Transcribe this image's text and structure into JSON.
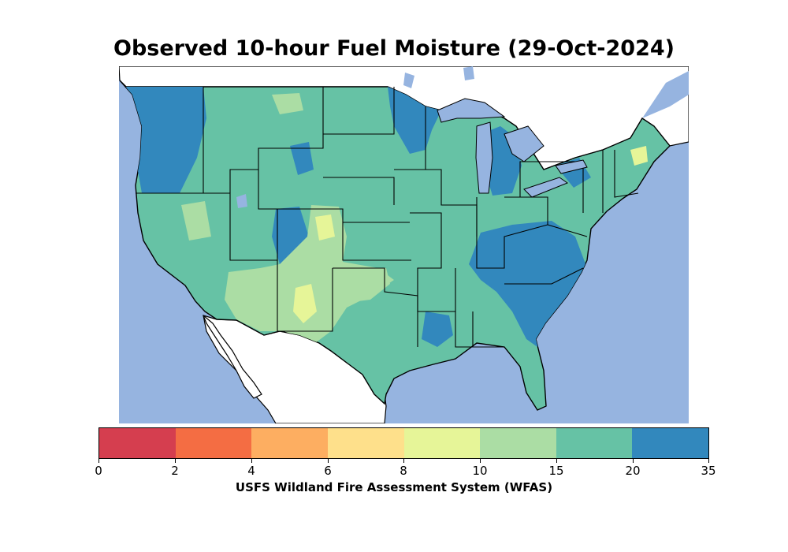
{
  "title": "Observed 10-hour Fuel Moisture (29-Oct-2024)",
  "colors": {
    "ocean": "#96b4e0",
    "lakes": "#96b4e0",
    "land_outside": "#ffffff",
    "borders": "#000000"
  },
  "colorbar": {
    "label": "USFS Wildland Fire Assessment System (WFAS)",
    "ticks": [
      "0",
      "2",
      "4",
      "6",
      "8",
      "10",
      "15",
      "20",
      "35"
    ],
    "bins": [
      {
        "range": "0-2",
        "color": "#d53e4f"
      },
      {
        "range": "2-4",
        "color": "#f46d43"
      },
      {
        "range": "4-6",
        "color": "#fdae61"
      },
      {
        "range": "6-8",
        "color": "#fee08b"
      },
      {
        "range": "8-10",
        "color": "#e6f598"
      },
      {
        "range": "10-15",
        "color": "#abdda4"
      },
      {
        "range": "15-20",
        "color": "#66c2a5"
      },
      {
        "range": "20-35",
        "color": "#3288bd"
      }
    ]
  }
}
